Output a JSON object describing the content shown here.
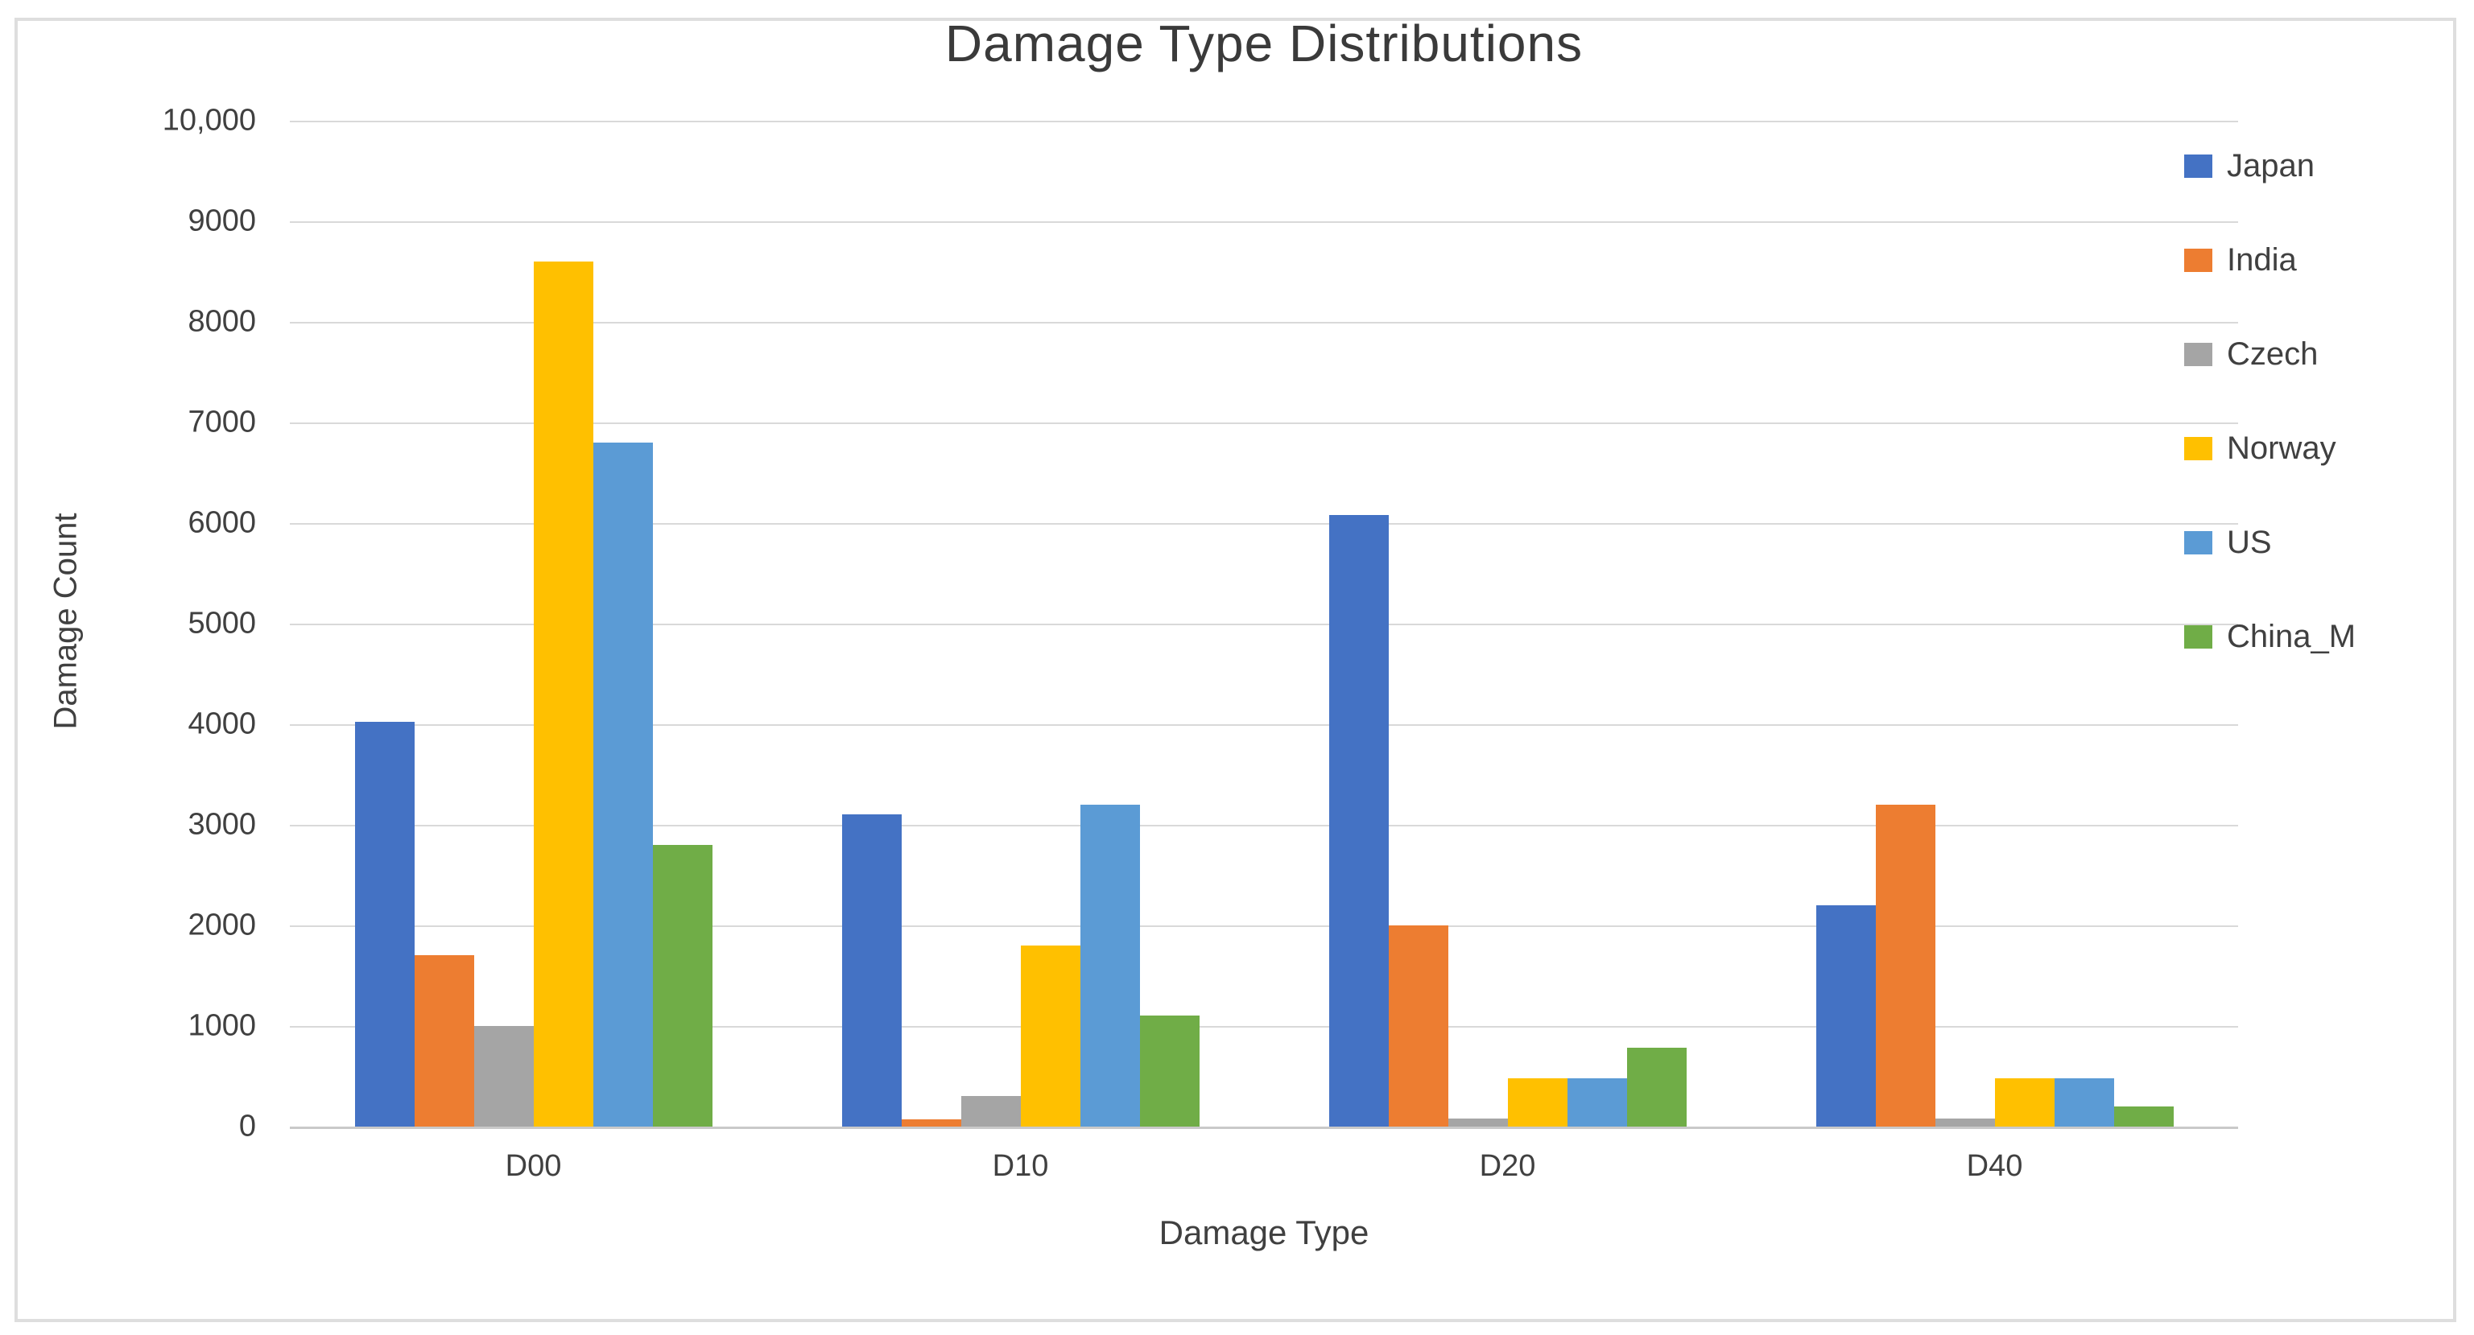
{
  "chart_data": {
    "type": "bar",
    "title": "Damage Type Distributions",
    "xlabel": "Damage Type",
    "ylabel": "Damage Count",
    "categories": [
      "D00",
      "D10",
      "D20",
      "D40"
    ],
    "series": [
      {
        "name": "Japan",
        "color": "#4472C4",
        "values": [
          4020,
          3100,
          6080,
          2200
        ]
      },
      {
        "name": "India",
        "color": "#ED7D31",
        "values": [
          1700,
          70,
          2000,
          3200
        ]
      },
      {
        "name": "Czech",
        "color": "#A5A5A5",
        "values": [
          1000,
          300,
          80,
          80
        ]
      },
      {
        "name": "Norway",
        "color": "#FFC000",
        "values": [
          8600,
          1800,
          480,
          480
        ]
      },
      {
        "name": "US",
        "color": "#5B9BD5",
        "values": [
          6800,
          3200,
          480,
          480
        ]
      },
      {
        "name": "China_M",
        "color": "#70AD47",
        "values": [
          2800,
          1100,
          780,
          200
        ]
      }
    ],
    "ylim": [
      0,
      10000
    ],
    "ytick_interval": 1000,
    "ytick_labels": [
      "0",
      "1000",
      "2000",
      "3000",
      "4000",
      "5000",
      "6000",
      "7000",
      "8000",
      "9000",
      "10,000"
    ],
    "grid": true,
    "legend_position": "right"
  },
  "colors": {
    "gridline": "#D9D9D9",
    "axis_line": "#C9C9C9",
    "text": "#404040",
    "frame_border": "#DEDEDE",
    "background": "#FFFFFF"
  }
}
